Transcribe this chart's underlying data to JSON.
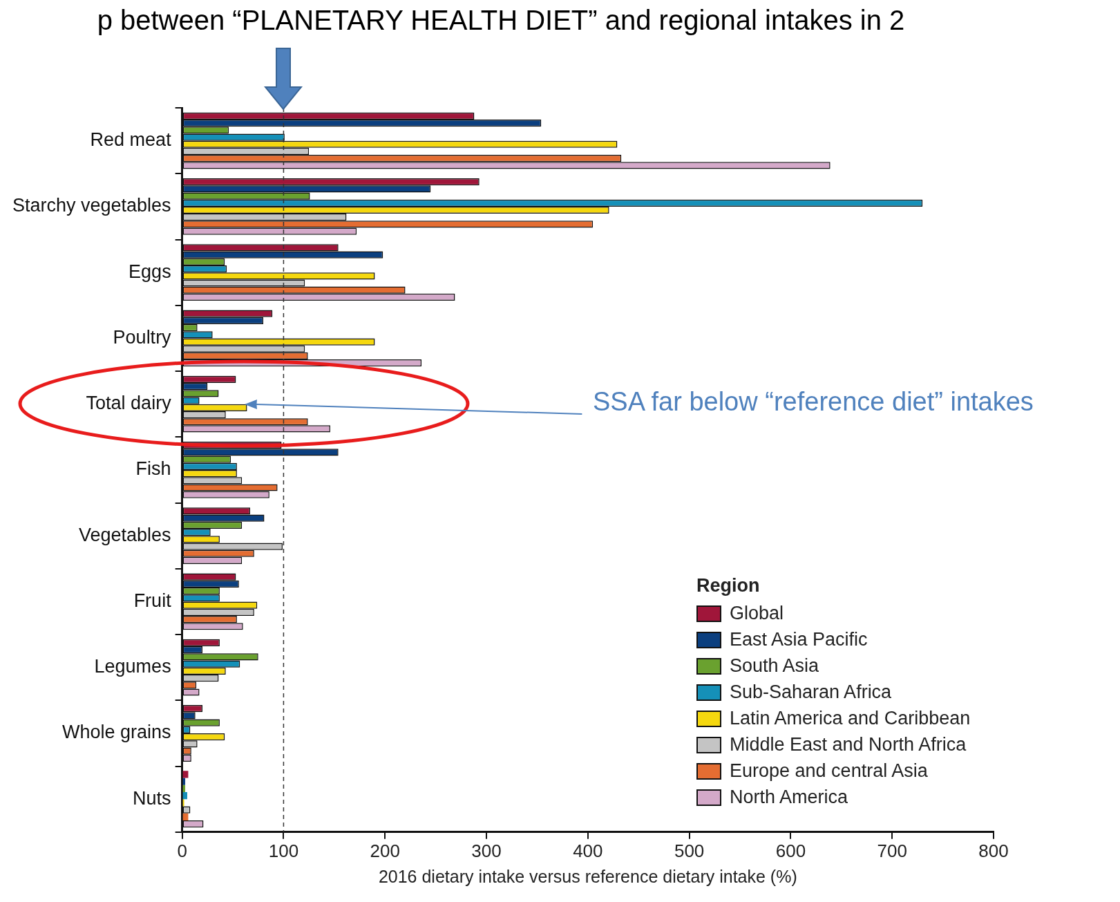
{
  "chart_data": {
    "type": "bar",
    "orientation": "horizontal",
    "title": "p between “PLANETARY HEALTH DIET” and regional intakes in 2",
    "xlabel": "2016 dietary intake versus reference dietary intake (%)",
    "legend_title": "Region",
    "legend": "bottom right",
    "grid": false,
    "categories": [
      "Red meat",
      "Starchy vegetables",
      "Eggs",
      "Poultry",
      "Total dairy",
      "Fish",
      "Vegetables",
      "Fruit",
      "Legumes",
      "Whole grains",
      "Nuts"
    ],
    "xlim": [
      0,
      800
    ],
    "xticks": [
      0,
      100,
      200,
      300,
      400,
      500,
      600,
      700,
      800
    ],
    "series": [
      {
        "name": "Global",
        "color": "#a0163a",
        "values": [
          288,
          293,
          154,
          89,
          53,
          98,
          67,
          53,
          37,
          20,
          6
        ]
      },
      {
        "name": "East Asia Pacific",
        "color": "#0b3f7f",
        "values": [
          354,
          245,
          198,
          80,
          25,
          154,
          81,
          56,
          20,
          13,
          3
        ]
      },
      {
        "name": "South Asia",
        "color": "#6aa12f",
        "values": [
          46,
          126,
          42,
          15,
          36,
          48,
          59,
          37,
          75,
          37,
          3
        ]
      },
      {
        "name": "Sub-Saharan Africa",
        "color": "#1590b8",
        "values": [
          101,
          730,
          44,
          30,
          17,
          54,
          28,
          37,
          57,
          8,
          5
        ]
      },
      {
        "name": "Latin America and Caribbean",
        "color": "#f5d80f",
        "values": [
          429,
          421,
          190,
          190,
          64,
          54,
          37,
          74,
          43,
          42,
          2
        ]
      },
      {
        "name": "Middle East and North Africa",
        "color": "#c4c4c4",
        "values": [
          125,
          162,
          121,
          121,
          43,
          59,
          99,
          71,
          36,
          15,
          8
        ]
      },
      {
        "name": "Europe and central  Asia",
        "color": "#e46d32",
        "values": [
          433,
          405,
          220,
          124,
          124,
          94,
          71,
          54,
          14,
          9,
          6
        ]
      },
      {
        "name": "North America",
        "color": "#d4a9c9",
        "values": [
          639,
          172,
          269,
          236,
          146,
          86,
          59,
          60,
          17,
          9,
          21
        ]
      }
    ],
    "ref_lines": [
      {
        "axis": "x",
        "value": 100,
        "line_style": "dashed",
        "color": "#333333"
      }
    ],
    "annotations": [
      "SSA far below “reference diet” intakes"
    ]
  }
}
